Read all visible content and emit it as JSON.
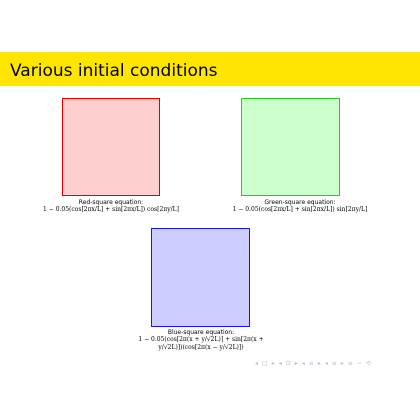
{
  "slide": {
    "title": "Various initial conditions"
  },
  "colors": {
    "title_bar": "#ffe600",
    "red_fill": "#ffcfcf",
    "red_border": "#e00000",
    "green_fill": "#ccffcc",
    "green_border": "#22cc22",
    "blue_fill": "#ccccff",
    "blue_border": "#1a1acc",
    "nav_icons": "#b9b9d8"
  },
  "panels": [
    {
      "caption_label": "Red-square equation:",
      "formula": [
        "1 − 0.05(cos[2πx/L] + sin[2πx/L]) cos[2πy/L]"
      ]
    },
    {
      "caption_label": "Green-square equation:",
      "formula": [
        "1 − 0.05(cos[2πx/L] + sin[2πx/L]) sin[2πy/L]"
      ]
    },
    {
      "caption_label": "Blue-square equation:",
      "formula": [
        "1 − 0.05(cos[2π(x + y/√2L)] + sin[2π(x +",
        "y/√2L)])(cos[2π(x − y/√2L)])"
      ]
    }
  ],
  "navigation": {
    "icons": [
      "prev-slide",
      "next-slide",
      "prev-frame",
      "next-frame",
      "prev-section",
      "next-section",
      "prev-subsection",
      "next-subsection",
      "align",
      "search"
    ],
    "glyphs": [
      "◂",
      "□",
      "▸",
      "◂",
      "⊡",
      "▸",
      "◂",
      "≡",
      "▸",
      "◂",
      "≡",
      "▸",
      "≡",
      "∽",
      "⟲"
    ]
  }
}
